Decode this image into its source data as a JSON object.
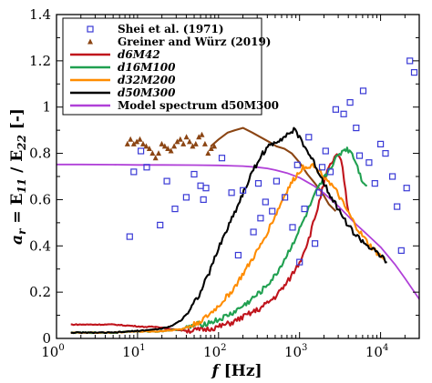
{
  "chart_data": {
    "type": "scatter",
    "x_scale": "log",
    "xlim": [
      1,
      30000
    ],
    "ylim": [
      0,
      1.4
    ],
    "grid": false,
    "legend_placement": "top-left",
    "xlabel": {
      "italic": "f",
      "plain": " [Hz]"
    },
    "ylabel": {
      "main": "a",
      "sub": "r",
      "rest": " = E",
      "sub2": "11",
      "mid": " / E",
      "sub3": "22",
      "end": " [-]"
    },
    "x_ticks": [
      {
        "value": 1,
        "mantissa": "10",
        "exp": "0"
      },
      {
        "value": 10,
        "mantissa": "10",
        "exp": "1"
      },
      {
        "value": 100,
        "mantissa": "10",
        "exp": "2"
      },
      {
        "value": 1000,
        "mantissa": "10",
        "exp": "3"
      },
      {
        "value": 10000,
        "mantissa": "10",
        "exp": "4"
      }
    ],
    "y_ticks": [
      {
        "value": 0,
        "label": "0"
      },
      {
        "value": 0.2,
        "label": "0.2"
      },
      {
        "value": 0.4,
        "label": "0.4"
      },
      {
        "value": 0.6,
        "label": "0.6"
      },
      {
        "value": 0.8,
        "label": "0.8"
      },
      {
        "value": 1.0,
        "label": "1"
      },
      {
        "value": 1.2,
        "label": "1.2"
      },
      {
        "value": 1.4,
        "label": "1.4"
      }
    ],
    "series": [
      {
        "name": "Shei et al. (1971)",
        "label_style": "bold",
        "kind": "scatter",
        "marker": "square-open",
        "color": "#3a3ad6",
        "x": [
          8,
          9,
          11,
          13,
          19,
          23,
          29,
          40,
          50,
          60,
          65,
          70,
          110,
          145,
          175,
          200,
          270,
          310,
          330,
          380,
          460,
          520,
          660,
          820,
          940,
          1000,
          1150,
          1300,
          1550,
          1750,
          1900,
          2100,
          2400,
          2800,
          3500,
          4200,
          5000,
          5500,
          6100,
          7200,
          8500,
          10000,
          11500,
          14000,
          16000,
          18000,
          21000,
          23000,
          26000
        ],
        "y": [
          0.44,
          0.72,
          0.81,
          0.74,
          0.49,
          0.68,
          0.56,
          0.61,
          0.71,
          0.66,
          0.6,
          0.65,
          0.78,
          0.63,
          0.36,
          0.64,
          0.46,
          0.67,
          0.52,
          0.59,
          0.55,
          0.68,
          0.61,
          0.48,
          0.75,
          0.33,
          0.56,
          0.87,
          0.41,
          0.63,
          0.74,
          0.81,
          0.72,
          0.99,
          0.97,
          1.02,
          0.91,
          0.79,
          1.07,
          0.76,
          0.67,
          0.84,
          0.8,
          0.7,
          0.57,
          0.38,
          0.65,
          1.2,
          1.15
        ]
      },
      {
        "name": "Greiner and Würz (2019)",
        "label_style": "bold",
        "kind": "scatter",
        "marker": "triangle",
        "color": "#8b4513",
        "x": [
          7.5,
          8.2,
          9.0,
          9.8,
          10.7,
          11.7,
          12.8,
          14.0,
          15.3,
          16.7,
          18.2,
          19.9,
          21.7,
          23.7,
          25.9,
          28.3,
          30.9,
          33.7,
          36.8,
          40.2,
          43.9,
          47.9,
          52.3,
          57.1,
          62.3,
          68.0,
          74.3,
          81.1,
          88.5
        ],
        "y": [
          0.84,
          0.86,
          0.84,
          0.85,
          0.86,
          0.84,
          0.83,
          0.82,
          0.8,
          0.78,
          0.8,
          0.84,
          0.83,
          0.82,
          0.81,
          0.83,
          0.85,
          0.86,
          0.84,
          0.87,
          0.85,
          0.83,
          0.84,
          0.87,
          0.88,
          0.84,
          0.8,
          0.82,
          0.83
        ]
      },
      {
        "name": "Greiner and Würz (2019)",
        "name_hidden": true,
        "kind": "line",
        "color": "#8b4513",
        "x": [
          80,
          100,
          130,
          160,
          200,
          260,
          330,
          420,
          520,
          650,
          800,
          1000,
          1250,
          1550,
          1900,
          2300,
          2800
        ],
        "y": [
          0.83,
          0.86,
          0.89,
          0.9,
          0.91,
          0.89,
          0.87,
          0.85,
          0.83,
          0.82,
          0.8,
          0.76,
          0.71,
          0.67,
          0.63,
          0.58,
          0.55
        ]
      },
      {
        "name": "d6M42",
        "label_style": "bolditalic",
        "kind": "line",
        "color": "#c0141c",
        "x": [
          1.5,
          3,
          5,
          8,
          12,
          18,
          25,
          35,
          50,
          70,
          100,
          150,
          220,
          330,
          500,
          700,
          1000,
          1300,
          1600,
          1900,
          2200,
          2500,
          2800,
          3100,
          3400,
          3700,
          4000
        ],
        "y": [
          0.06,
          0.06,
          0.06,
          0.055,
          0.05,
          0.05,
          0.04,
          0.035,
          0.035,
          0.04,
          0.05,
          0.07,
          0.1,
          0.13,
          0.18,
          0.24,
          0.33,
          0.43,
          0.54,
          0.64,
          0.72,
          0.76,
          0.79,
          0.78,
          0.74,
          0.63,
          0.55
        ]
      },
      {
        "name": "d16M100",
        "label_style": "bolditalic",
        "kind": "line",
        "color": "#20a050",
        "x": [
          1.5,
          3,
          5,
          8,
          12,
          18,
          25,
          35,
          45,
          55,
          70,
          100,
          150,
          220,
          330,
          500,
          700,
          1000,
          1300,
          1600,
          2000,
          2500,
          3000,
          3600,
          4300,
          5000,
          5800,
          6800
        ],
        "y": [
          0.025,
          0.025,
          0.025,
          0.03,
          0.03,
          0.03,
          0.035,
          0.04,
          0.05,
          0.06,
          0.065,
          0.08,
          0.11,
          0.15,
          0.2,
          0.27,
          0.36,
          0.47,
          0.56,
          0.63,
          0.69,
          0.75,
          0.79,
          0.82,
          0.81,
          0.76,
          0.69,
          0.66
        ]
      },
      {
        "name": "d32M200",
        "label_style": "bolditalic",
        "kind": "line",
        "color": "#ff8c00",
        "x": [
          1.5,
          3,
          5,
          8,
          12,
          18,
          25,
          35,
          50,
          70,
          100,
          150,
          220,
          330,
          500,
          700,
          900,
          1100,
          1400,
          1800,
          2300,
          2900,
          3600,
          4500,
          5500,
          7000,
          9000,
          11000
        ],
        "y": [
          0.025,
          0.025,
          0.025,
          0.03,
          0.03,
          0.03,
          0.035,
          0.04,
          0.06,
          0.09,
          0.14,
          0.21,
          0.3,
          0.4,
          0.53,
          0.64,
          0.7,
          0.74,
          0.75,
          0.72,
          0.68,
          0.63,
          0.57,
          0.51,
          0.46,
          0.41,
          0.37,
          0.34
        ]
      },
      {
        "name": "d50M300",
        "label_style": "bolditalic",
        "kind": "line",
        "color": "#000000",
        "x": [
          1.5,
          3,
          5,
          8,
          12,
          18,
          25,
          35,
          45,
          60,
          80,
          100,
          130,
          170,
          220,
          280,
          350,
          450,
          560,
          700,
          850,
          1000,
          1200,
          1500,
          1900,
          2400,
          3000,
          3800,
          4800,
          6000,
          7500,
          9000,
          10500,
          12000
        ],
        "y": [
          0.025,
          0.025,
          0.025,
          0.03,
          0.035,
          0.04,
          0.05,
          0.08,
          0.13,
          0.2,
          0.3,
          0.39,
          0.48,
          0.57,
          0.66,
          0.74,
          0.8,
          0.84,
          0.86,
          0.88,
          0.9,
          0.87,
          0.82,
          0.76,
          0.69,
          0.62,
          0.56,
          0.5,
          0.45,
          0.42,
          0.39,
          0.37,
          0.35,
          0.33
        ]
      },
      {
        "name": "Model spectrum d50M300",
        "label_style": "model",
        "kind": "line",
        "color": "#b040d8",
        "x": [
          1,
          2,
          5,
          10,
          20,
          50,
          100,
          200,
          300,
          400,
          500,
          700,
          1000,
          1500,
          2000,
          3000,
          5000,
          7000,
          10000,
          15000,
          20000,
          30000
        ],
        "y": [
          0.752,
          0.752,
          0.751,
          0.75,
          0.75,
          0.749,
          0.748,
          0.745,
          0.74,
          0.735,
          0.728,
          0.715,
          0.695,
          0.66,
          0.628,
          0.572,
          0.493,
          0.446,
          0.395,
          0.321,
          0.26,
          0.17
        ]
      }
    ]
  }
}
